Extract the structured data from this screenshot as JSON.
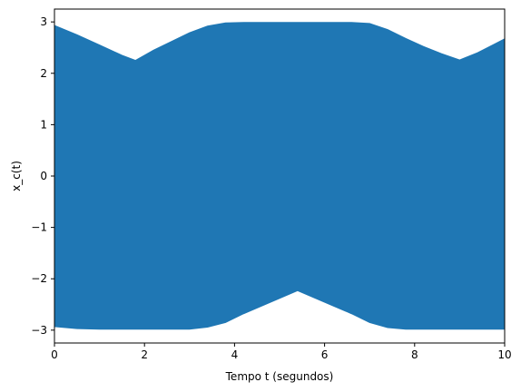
{
  "chart_data": {
    "type": "area",
    "title": "",
    "xlabel": "Tempo t (segundos)",
    "ylabel": "x_c(t)",
    "xlim": [
      0,
      10
    ],
    "ylim": [
      -3.25,
      3.25
    ],
    "xticks": [
      0,
      2,
      4,
      6,
      8,
      10
    ],
    "yticks": [
      -3,
      -2,
      -1,
      0,
      1,
      2,
      3
    ],
    "ytick_labels": [
      "−3",
      "−2",
      "−1",
      "0",
      "1",
      "2",
      "3"
    ],
    "grid": false,
    "legend": "none",
    "series": [
      {
        "color": "#1f77b4",
        "upper_envelope": {
          "x": [
            0,
            0.5,
            1.0,
            1.5,
            1.8,
            2.2,
            2.6,
            3.0,
            3.4,
            3.8,
            4.2,
            4.6,
            5.0,
            5.4,
            5.8,
            6.2,
            6.6,
            7.0,
            7.4,
            7.8,
            8.2,
            8.6,
            9.0,
            9.4,
            9.8,
            10.0
          ],
          "y": [
            2.93,
            2.75,
            2.55,
            2.35,
            2.25,
            2.45,
            2.62,
            2.79,
            2.92,
            2.98,
            2.99,
            2.99,
            2.99,
            2.99,
            2.99,
            2.99,
            2.99,
            2.97,
            2.85,
            2.68,
            2.52,
            2.38,
            2.26,
            2.4,
            2.58,
            2.67
          ]
        },
        "lower_envelope": {
          "x": [
            0,
            0.5,
            1.0,
            2.0,
            3.0,
            3.4,
            3.8,
            4.2,
            4.6,
            5.0,
            5.4,
            5.8,
            6.2,
            6.6,
            7.0,
            7.4,
            7.8,
            8.2,
            8.6,
            9.0,
            9.5,
            10.0
          ],
          "y": [
            -2.93,
            -2.97,
            -2.98,
            -2.98,
            -2.98,
            -2.94,
            -2.85,
            -2.68,
            -2.53,
            -2.38,
            -2.23,
            -2.38,
            -2.53,
            -2.68,
            -2.85,
            -2.95,
            -2.98,
            -2.98,
            -2.98,
            -2.98,
            -2.98,
            -2.98
          ]
        }
      }
    ]
  }
}
